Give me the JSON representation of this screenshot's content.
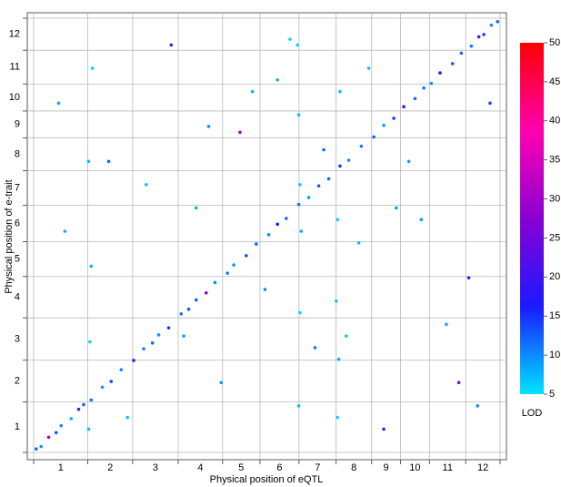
{
  "chart_data": {
    "type": "scatter",
    "x_label": "Physical position of eQTL",
    "y_label": "Physical position of e-trait",
    "categories": [
      "1",
      "2",
      "3",
      "4",
      "5",
      "6",
      "7",
      "8",
      "9",
      "10",
      "11",
      "12"
    ],
    "xlim": [
      0,
      373
    ],
    "ylim": [
      0,
      373
    ],
    "xticks": [
      0,
      43.3,
      79.2,
      115.6,
      151.1,
      181,
      212.2,
      241.9,
      270.3,
      293.3,
      316.5,
      345.5,
      373
    ],
    "yticks": [
      0,
      43.3,
      79.2,
      115.6,
      151.1,
      181,
      212.2,
      241.9,
      270.3,
      293.3,
      316.5,
      345.5,
      373
    ],
    "grid": true,
    "x": [
      2,
      6,
      12,
      18,
      22,
      30,
      36,
      40,
      46,
      55,
      62,
      70,
      80,
      88,
      95,
      100,
      108,
      118,
      124,
      130,
      138,
      145,
      155,
      160,
      170,
      178,
      188,
      195,
      202,
      212,
      220,
      228,
      236,
      245,
      252,
      262,
      272,
      280,
      288,
      296,
      305,
      312,
      318,
      325,
      335,
      342,
      350,
      356,
      360,
      366,
      371,
      44,
      45,
      46,
      44,
      47,
      212,
      213,
      214,
      212,
      211,
      213,
      243,
      244,
      242,
      243,
      245,
      20,
      60,
      75,
      110,
      130,
      150,
      165,
      185,
      195,
      225,
      260,
      280,
      300,
      330,
      340,
      355,
      365,
      90,
      120,
      175,
      205,
      232,
      268,
      310,
      348,
      25,
      140,
      250,
      290
    ],
    "y": [
      3,
      5,
      13,
      17,
      23,
      29,
      37,
      41,
      45,
      56,
      61,
      71,
      79,
      89,
      94,
      101,
      107,
      119,
      123,
      131,
      137,
      146,
      154,
      161,
      169,
      179,
      187,
      196,
      201,
      213,
      219,
      229,
      235,
      246,
      251,
      263,
      271,
      281,
      287,
      297,
      304,
      313,
      317,
      326,
      334,
      343,
      349,
      357,
      359,
      367,
      370,
      20,
      95,
      160,
      250,
      330,
      40,
      120,
      190,
      290,
      350,
      230,
      30,
      80,
      130,
      200,
      310,
      300,
      250,
      30,
      350,
      210,
      60,
      275,
      140,
      320,
      90,
      180,
      20,
      250,
      110,
      60,
      40,
      300,
      230,
      100,
      310,
      355,
      260,
      330,
      200,
      150,
      190,
      280,
      100,
      210
    ],
    "lod": [
      12,
      9,
      30,
      14,
      10,
      8,
      22,
      12,
      11,
      9,
      14,
      10,
      18,
      11,
      12,
      9,
      15,
      11,
      13,
      12,
      28,
      10,
      11,
      9,
      14,
      12,
      10,
      16,
      12,
      11,
      9,
      13,
      12,
      15,
      10,
      11,
      12,
      9,
      14,
      22,
      12,
      11,
      10,
      18,
      13,
      12,
      11,
      25,
      14,
      10,
      12,
      7,
      6,
      8,
      7,
      6,
      7,
      6,
      8,
      7,
      6,
      7,
      6,
      8,
      7,
      6,
      7,
      9,
      12,
      7,
      20,
      8,
      9,
      30,
      10,
      8,
      11,
      7,
      22,
      9,
      8,
      25,
      10,
      14,
      7,
      9,
      8,
      6,
      12,
      7,
      9,
      20,
      8,
      10,
      7,
      9
    ],
    "color_scale": {
      "label": "LOD",
      "lim": [
        5,
        50
      ],
      "ticks": [
        5,
        10,
        15,
        20,
        25,
        30,
        35,
        40,
        45,
        50
      ],
      "colors": [
        "#00e5ff",
        "#1a1aff",
        "#8a00d4",
        "#ff00b0",
        "#ff0000"
      ]
    }
  }
}
